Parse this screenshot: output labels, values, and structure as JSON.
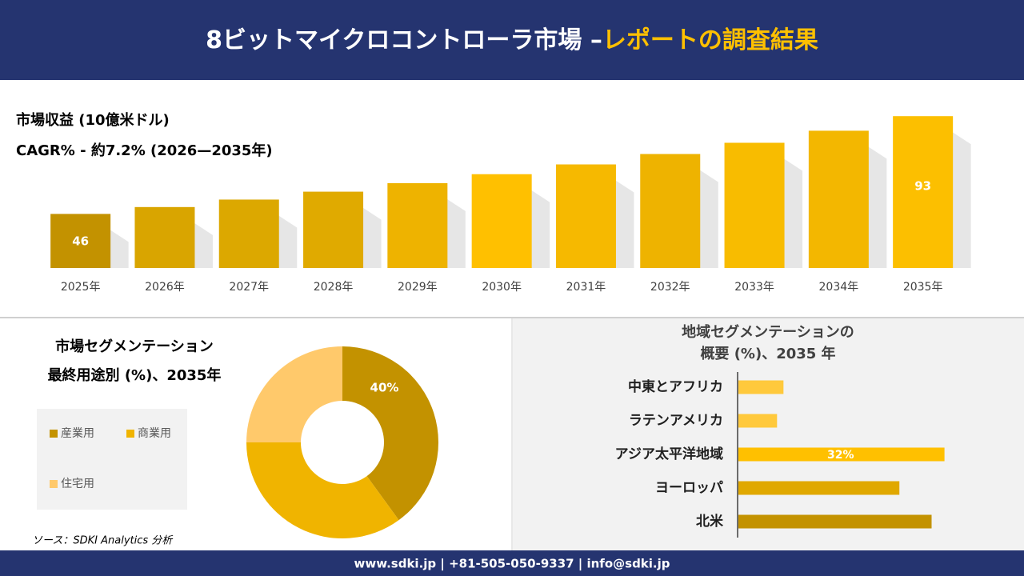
{
  "header": {
    "title": "8ビットマイクロコントローラ市場 –",
    "highlight": "レポートの調査結果"
  },
  "source": "ソース：SDKI Analytics 分析",
  "footer": "www.sdki.jp | +81-505-050-9337 | info@sdki.jp",
  "chart_data": [
    {
      "type": "bar",
      "title": "市場収益 (10億米ドル)",
      "subtitle": "CAGR% - 約7.2% (2026—2035年)",
      "categories": [
        "2025年",
        "2026年",
        "2027年",
        "2028年",
        "2029年",
        "2030年",
        "2031年",
        "2032年",
        "2033年",
        "2034年",
        "2035年"
      ],
      "values": [
        46,
        49.3,
        52.9,
        56.7,
        60.8,
        65.1,
        69.8,
        74.8,
        80.2,
        86.0,
        93
      ],
      "value_labels": [
        "46",
        null,
        null,
        null,
        null,
        null,
        null,
        null,
        null,
        null,
        "93"
      ],
      "colors": [
        "#c39200",
        "#d9a500",
        "#dca800",
        "#e0aa00",
        "#eeb300",
        "#ffc000",
        "#f6b900",
        "#eeb300",
        "#f8bc00",
        "#f3b700",
        "#fcbf00"
      ],
      "ylim": [
        20,
        95
      ]
    },
    {
      "type": "donut",
      "title": [
        "市場セグメンテーション",
        "最終用途別 (%)、2035年"
      ],
      "categories": [
        "産業用",
        "商業用",
        "住宅用"
      ],
      "values": [
        40,
        35,
        25
      ],
      "value_labels": [
        "40%",
        null,
        null
      ],
      "colors": [
        "#c39200",
        "#f0b400",
        "#ffc96b"
      ]
    },
    {
      "type": "hbar",
      "title": [
        "地域セグメンテーションの",
        "概要 (%)、2035 年"
      ],
      "categories": [
        "中東とアフリカ",
        "ラテンアメリカ",
        "アジア太平洋地域",
        "ヨーロッパ",
        "北米"
      ],
      "values": [
        7,
        6,
        32,
        25,
        30
      ],
      "value_labels": [
        null,
        null,
        "32%",
        null,
        null
      ],
      "colors": [
        "#ffc93c",
        "#ffc93c",
        "#ffc000",
        "#e0a800",
        "#c39200"
      ],
      "xlim": [
        0,
        40
      ]
    }
  ]
}
